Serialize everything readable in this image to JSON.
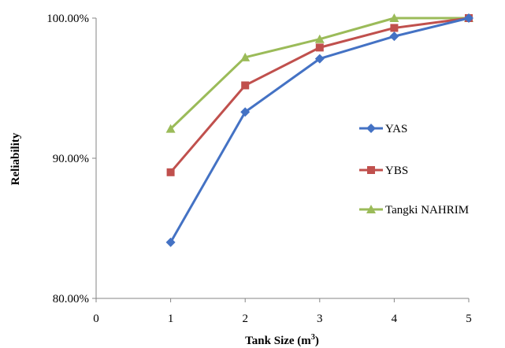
{
  "chart_data": {
    "type": "line",
    "xlabel": "Tank Size (m",
    "xlabel_sup": "3",
    "xlabel_suffix": ")",
    "ylabel": "Reliability",
    "xlim": [
      0,
      5
    ],
    "ylim": [
      0.8,
      1.0
    ],
    "x_ticks": [
      "0",
      "1",
      "2",
      "3",
      "4",
      "5"
    ],
    "y_ticks": [
      {
        "value": 0.8,
        "label": "80.00%"
      },
      {
        "value": 0.9,
        "label": "90.00%"
      },
      {
        "value": 1.0,
        "label": "100.00%"
      }
    ],
    "grid": false,
    "legend_position": "right",
    "x": [
      1,
      2,
      3,
      4,
      5
    ],
    "series": [
      {
        "name": "YAS",
        "color": "#4472C4",
        "marker": "diamond",
        "values": [
          0.84,
          0.933,
          0.971,
          0.987,
          1.0
        ]
      },
      {
        "name": "YBS",
        "color": "#C0504D",
        "marker": "square",
        "values": [
          0.89,
          0.952,
          0.979,
          0.993,
          1.0
        ]
      },
      {
        "name": "Tangki NAHRIM",
        "color": "#9BBB59",
        "marker": "triangle",
        "values": [
          0.921,
          0.972,
          0.985,
          1.0,
          1.0
        ]
      }
    ]
  }
}
